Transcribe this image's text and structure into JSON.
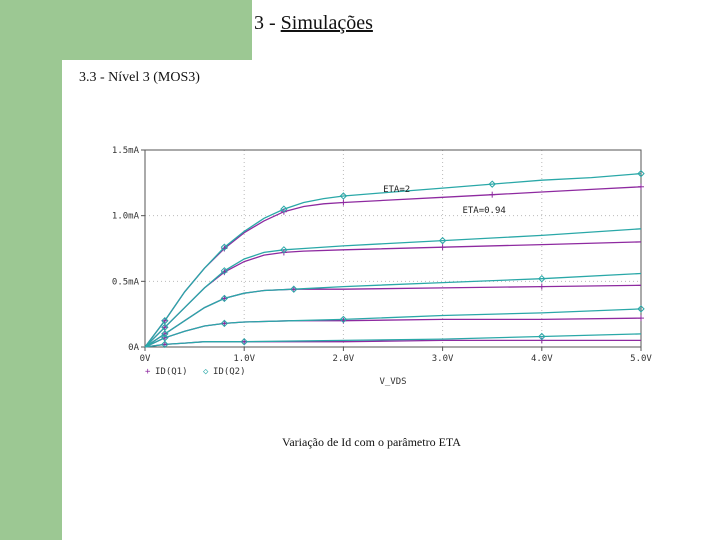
{
  "slide": {
    "title_prefix": "3 - ",
    "title_link": "Simulações",
    "subtitle": "3.3 - Nível 3 (MOS3)",
    "caption": "Variação de Id com o parâmetro ETA"
  },
  "colors": {
    "q1": "#8e2aa0",
    "q2": "#2aa8a8",
    "green": "#9cc893"
  },
  "chart_data": {
    "type": "line",
    "xlabel": "V_VDS",
    "ylabel": "",
    "xlim": [
      0,
      5
    ],
    "ylim": [
      0,
      1.5
    ],
    "x_ticks": [
      {
        "v": 0,
        "label": "0V"
      },
      {
        "v": 1,
        "label": "1.0V"
      },
      {
        "v": 2,
        "label": "2.0V"
      },
      {
        "v": 3,
        "label": "3.0V"
      },
      {
        "v": 4,
        "label": "4.0V"
      },
      {
        "v": 5,
        "label": "5.0V"
      }
    ],
    "y_ticks": [
      {
        "v": 0,
        "label": "0A"
      },
      {
        "v": 0.5,
        "label": "0.5mA"
      },
      {
        "v": 1.0,
        "label": "1.0mA"
      },
      {
        "v": 1.5,
        "label": "1.5mA"
      }
    ],
    "legend": [
      {
        "marker": "+",
        "label": "ID(Q1)",
        "color": "#8e2aa0"
      },
      {
        "marker": "◇",
        "label": "ID(Q2)",
        "color": "#2aa8a8"
      }
    ],
    "annotations": [
      {
        "text": "ETA=2",
        "x": 2.4,
        "y": 1.18
      },
      {
        "text": "ETA=0.94",
        "x": 3.2,
        "y": 1.02
      }
    ],
    "series": [
      {
        "name": "ID(Q1)",
        "color": "#8e2aa0",
        "marker": "+",
        "curves": [
          [
            [
              0,
              0
            ],
            [
              0.2,
              0.2
            ],
            [
              0.4,
              0.42
            ],
            [
              0.6,
              0.6
            ],
            [
              0.8,
              0.75
            ],
            [
              1.0,
              0.87
            ],
            [
              1.2,
              0.96
            ],
            [
              1.4,
              1.03
            ],
            [
              1.6,
              1.07
            ],
            [
              1.8,
              1.09
            ],
            [
              2.0,
              1.1
            ],
            [
              2.5,
              1.12
            ],
            [
              3.0,
              1.14
            ],
            [
              3.5,
              1.16
            ],
            [
              4.0,
              1.18
            ],
            [
              4.5,
              1.2
            ],
            [
              5.0,
              1.22
            ]
          ],
          [
            [
              0,
              0
            ],
            [
              0.2,
              0.15
            ],
            [
              0.4,
              0.3
            ],
            [
              0.6,
              0.45
            ],
            [
              0.8,
              0.57
            ],
            [
              1.0,
              0.65
            ],
            [
              1.2,
              0.7
            ],
            [
              1.4,
              0.72
            ],
            [
              1.6,
              0.73
            ],
            [
              2.0,
              0.74
            ],
            [
              3.0,
              0.76
            ],
            [
              4.0,
              0.78
            ],
            [
              5.0,
              0.8
            ]
          ],
          [
            [
              0,
              0
            ],
            [
              0.2,
              0.1
            ],
            [
              0.4,
              0.2
            ],
            [
              0.6,
              0.3
            ],
            [
              0.8,
              0.37
            ],
            [
              1.0,
              0.41
            ],
            [
              1.2,
              0.43
            ],
            [
              1.5,
              0.44
            ],
            [
              2.0,
              0.44
            ],
            [
              3.0,
              0.45
            ],
            [
              4.0,
              0.46
            ],
            [
              5.0,
              0.47
            ]
          ],
          [
            [
              0,
              0
            ],
            [
              0.2,
              0.07
            ],
            [
              0.4,
              0.12
            ],
            [
              0.6,
              0.16
            ],
            [
              0.8,
              0.18
            ],
            [
              1.0,
              0.19
            ],
            [
              1.5,
              0.2
            ],
            [
              2.0,
              0.2
            ],
            [
              3.0,
              0.21
            ],
            [
              4.0,
              0.21
            ],
            [
              5.0,
              0.22
            ]
          ],
          [
            [
              0,
              0
            ],
            [
              0.2,
              0.02
            ],
            [
              0.4,
              0.03
            ],
            [
              0.6,
              0.04
            ],
            [
              1.0,
              0.04
            ],
            [
              2.0,
              0.04
            ],
            [
              3.0,
              0.05
            ],
            [
              4.0,
              0.05
            ],
            [
              5.0,
              0.05
            ]
          ]
        ]
      },
      {
        "name": "ID(Q2)",
        "color": "#2aa8a8",
        "marker": "◇",
        "curves": [
          [
            [
              0,
              0
            ],
            [
              0.2,
              0.2
            ],
            [
              0.4,
              0.42
            ],
            [
              0.6,
              0.6
            ],
            [
              0.8,
              0.76
            ],
            [
              1.0,
              0.88
            ],
            [
              1.2,
              0.98
            ],
            [
              1.4,
              1.05
            ],
            [
              1.6,
              1.1
            ],
            [
              1.8,
              1.13
            ],
            [
              2.0,
              1.15
            ],
            [
              2.5,
              1.18
            ],
            [
              3.0,
              1.21
            ],
            [
              3.5,
              1.24
            ],
            [
              4.0,
              1.27
            ],
            [
              4.5,
              1.29
            ],
            [
              5.0,
              1.32
            ]
          ],
          [
            [
              0,
              0
            ],
            [
              0.2,
              0.15
            ],
            [
              0.4,
              0.3
            ],
            [
              0.6,
              0.45
            ],
            [
              0.8,
              0.58
            ],
            [
              1.0,
              0.67
            ],
            [
              1.2,
              0.72
            ],
            [
              1.4,
              0.74
            ],
            [
              1.6,
              0.75
            ],
            [
              2.0,
              0.77
            ],
            [
              3.0,
              0.81
            ],
            [
              4.0,
              0.85
            ],
            [
              5.0,
              0.9
            ]
          ],
          [
            [
              0,
              0
            ],
            [
              0.2,
              0.1
            ],
            [
              0.4,
              0.2
            ],
            [
              0.6,
              0.3
            ],
            [
              0.8,
              0.37
            ],
            [
              1.0,
              0.41
            ],
            [
              1.2,
              0.43
            ],
            [
              1.5,
              0.44
            ],
            [
              2.0,
              0.46
            ],
            [
              3.0,
              0.49
            ],
            [
              4.0,
              0.52
            ],
            [
              5.0,
              0.56
            ]
          ],
          [
            [
              0,
              0
            ],
            [
              0.2,
              0.07
            ],
            [
              0.4,
              0.12
            ],
            [
              0.6,
              0.16
            ],
            [
              0.8,
              0.18
            ],
            [
              1.0,
              0.19
            ],
            [
              1.5,
              0.2
            ],
            [
              2.0,
              0.21
            ],
            [
              3.0,
              0.24
            ],
            [
              4.0,
              0.26
            ],
            [
              5.0,
              0.29
            ]
          ],
          [
            [
              0,
              0
            ],
            [
              0.2,
              0.02
            ],
            [
              0.4,
              0.03
            ],
            [
              0.6,
              0.04
            ],
            [
              1.0,
              0.04
            ],
            [
              2.0,
              0.05
            ],
            [
              3.0,
              0.06
            ],
            [
              4.0,
              0.08
            ],
            [
              5.0,
              0.1
            ]
          ]
        ]
      }
    ]
  }
}
